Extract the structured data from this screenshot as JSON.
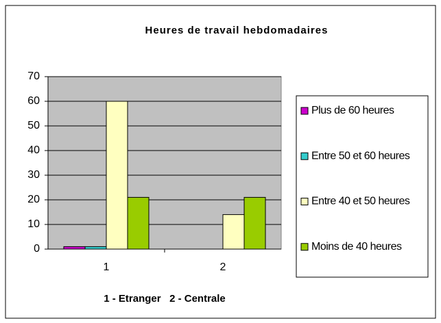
{
  "chart_data": {
    "type": "bar",
    "title": "Heures de travail hebdomadaires",
    "x_label": "1 - Etranger   2 - Centrale",
    "categories": [
      "1",
      "2"
    ],
    "series": [
      {
        "name": "Plus de 60 heures",
        "color": "#cc00cc",
        "values": [
          1,
          0
        ]
      },
      {
        "name": "Entre 50 et 60 heures",
        "color": "#33cccc",
        "values": [
          1,
          0
        ]
      },
      {
        "name": "Entre 40 et 50 heures",
        "color": "#ffffc0",
        "values": [
          60,
          14
        ]
      },
      {
        "name": "Moins de 40 heures",
        "color": "#99cc00",
        "values": [
          21,
          21
        ]
      }
    ],
    "ylim": [
      0,
      70
    ],
    "yticks": [
      0,
      10,
      20,
      30,
      40,
      50,
      60,
      70
    ],
    "grid": true,
    "legend": "right"
  }
}
